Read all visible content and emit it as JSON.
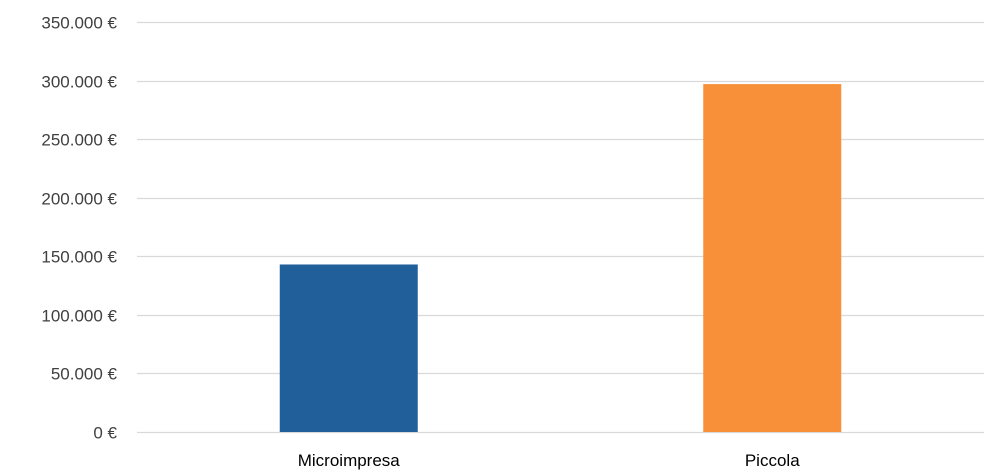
{
  "chart_data": {
    "type": "bar",
    "categories": [
      "Microimpresa",
      "Piccola"
    ],
    "values": [
      143000,
      297000
    ],
    "colors": [
      "#215f9a",
      "#f79039"
    ],
    "title": "",
    "xlabel": "",
    "ylabel": "",
    "ylim": [
      0,
      350000
    ],
    "yticks": [
      0,
      50000,
      100000,
      150000,
      200000,
      250000,
      300000,
      350000
    ],
    "ytick_labels": [
      "0 €",
      "50.000 €",
      "100.000 €",
      "150.000 €",
      "200.000 €",
      "250.000 €",
      "300.000 €",
      "350.000 €"
    ],
    "grid": true,
    "gridline_color": "#d9d9d9",
    "legend": "none"
  }
}
